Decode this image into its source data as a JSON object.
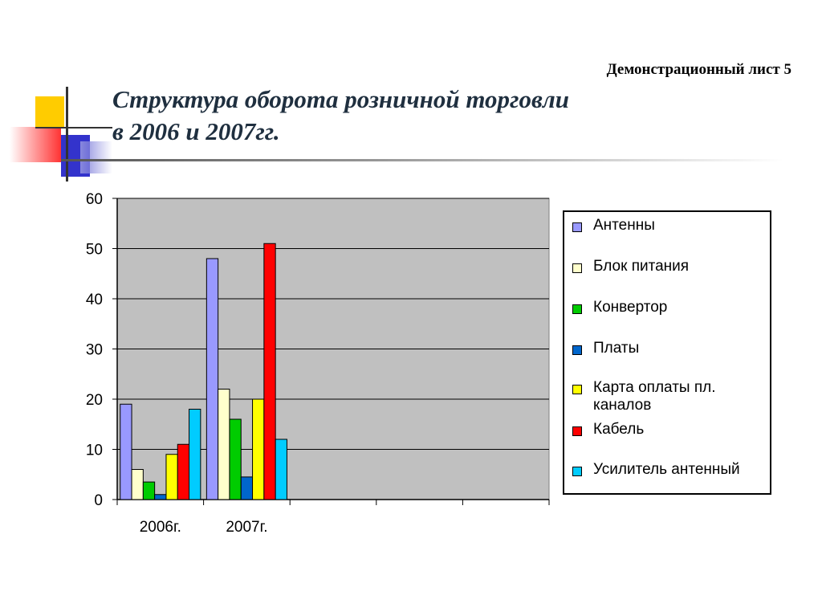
{
  "header": {
    "sheet_label": "Демонстрационный лист 5",
    "title_line1": "Структура оборота розничной торговли",
    "title_line2": "в 2006 и 2007гг."
  },
  "chart_data": {
    "type": "bar",
    "categories": [
      "2006г.",
      "2007г.",
      "",
      "",
      ""
    ],
    "series": [
      {
        "name": "Антенны",
        "color": "#9999ff",
        "values": [
          19,
          48,
          null,
          null,
          null
        ]
      },
      {
        "name": "Блок питания",
        "color": "#ffffcc",
        "values": [
          6,
          22,
          null,
          null,
          null
        ]
      },
      {
        "name": "Конвертор",
        "color": "#00cc00",
        "values": [
          3.5,
          16,
          null,
          null,
          null
        ]
      },
      {
        "name": "Платы",
        "color": "#0066cc",
        "values": [
          1,
          4.5,
          null,
          null,
          null
        ]
      },
      {
        "name": "Карта оплаты пл. каналов",
        "color": "#ffff00",
        "values": [
          9,
          20,
          null,
          null,
          null
        ]
      },
      {
        "name": "Кабель",
        "color": "#ff0000",
        "values": [
          11,
          51,
          null,
          null,
          null
        ]
      },
      {
        "name": "Усилитель антенный",
        "color": "#00ccff",
        "values": [
          18,
          12,
          null,
          null,
          null
        ]
      }
    ],
    "ylim": [
      0,
      60
    ],
    "yticks": [
      0,
      10,
      20,
      30,
      40,
      50,
      60
    ],
    "grid": true,
    "plot_background": "#c0c0c0",
    "legend_position": "right"
  }
}
